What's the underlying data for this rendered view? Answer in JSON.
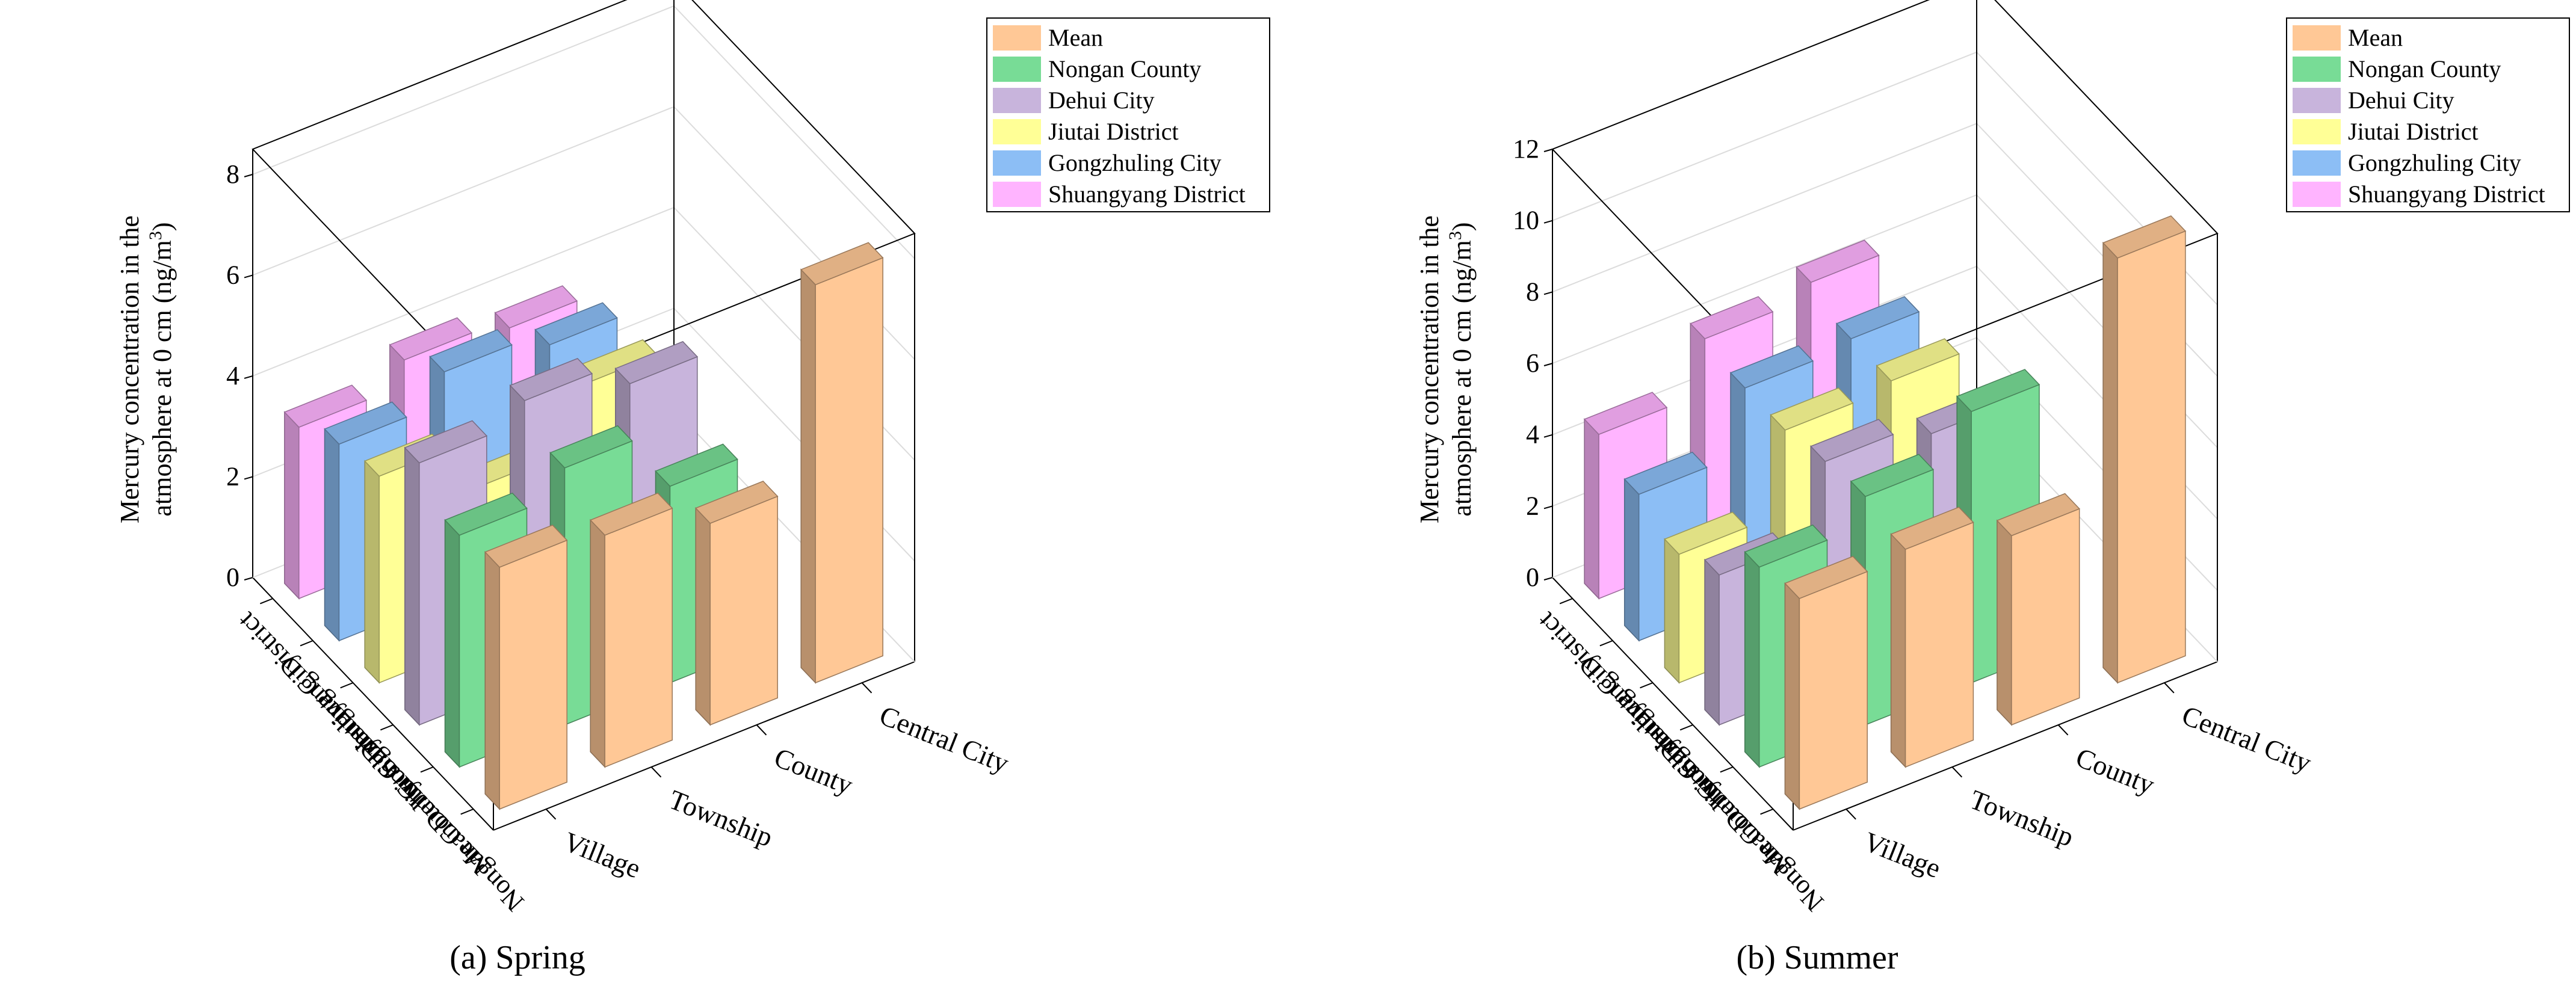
{
  "figure": {
    "colors": {
      "Mean": "#FFC896",
      "Nongan County": "#78DC96",
      "Dehui City": "#C8B4DC",
      "Jiutai District": "#FFFF96",
      "Gongzhuling City": "#8CBEF5",
      "Shuangyang District": "#FFB4FF"
    }
  },
  "chart_data": [
    {
      "type": "bar3d",
      "caption": "(a) Spring",
      "zlabel_line1": "Mercury concentration in the",
      "zlabel_line2": "atmosphere at 0 cm (ng/m",
      "zlabel_sup": "3",
      "zlabel_close": ")",
      "zlim": [
        0,
        8.5
      ],
      "zticks": [
        "0",
        "2",
        "4",
        "6",
        "8"
      ],
      "zticks_values": [
        0,
        2,
        4,
        6,
        8
      ],
      "x_categories": [
        "Village",
        "Township",
        "County",
        "Central City"
      ],
      "y_categories": [
        "Shuangyang District",
        "Gongzhuling City",
        "Jiutai District",
        "Dehui City",
        "Nongan County",
        "Mean"
      ],
      "legend": [
        "Mean",
        "Nongan County",
        "Dehui City",
        "Jiutai District",
        "Gongzhuling City",
        "Shuangyang District"
      ],
      "series": [
        {
          "name": "Shuangyang District",
          "values": [
            3.4,
            3.9,
            3.7,
            null
          ]
        },
        {
          "name": "Gongzhuling City",
          "values": [
            3.9,
            4.5,
            4.2,
            null
          ]
        },
        {
          "name": "Jiutai District",
          "values": [
            4.1,
            3.1,
            4.3,
            null
          ]
        },
        {
          "name": "Dehui City",
          "values": [
            5.2,
            5.6,
            5.1,
            null
          ]
        },
        {
          "name": "Nongan County",
          "values": [
            4.6,
            5.1,
            3.9,
            null
          ]
        },
        {
          "name": "Mean",
          "values": [
            4.8,
            4.6,
            4.0,
            7.9
          ]
        }
      ]
    },
    {
      "type": "bar3d",
      "caption": "(b) Summer",
      "zlabel_line1": "Mercury concentration in the",
      "zlabel_line2": "atmosphere at 0 cm (ng/m",
      "zlabel_sup": "3",
      "zlabel_close": ")",
      "zlim": [
        0,
        12
      ],
      "zticks": [
        "0",
        "2",
        "4",
        "6",
        "8",
        "10",
        "12"
      ],
      "zticks_values": [
        0,
        2,
        4,
        6,
        8,
        10,
        12
      ],
      "x_categories": [
        "Village",
        "Township",
        "County",
        "Central City"
      ],
      "y_categories": [
        "Shuangyang District",
        "Gongzhuling City",
        "Jiutai District",
        "Dehui City",
        "Nongan County",
        "Mean"
      ],
      "legend": [
        "Mean",
        "Nongan County",
        "Dehui City",
        "Jiutai District",
        "Gongzhuling City",
        "Shuangyang District"
      ],
      "series": [
        {
          "name": "Shuangyang District",
          "values": [
            4.6,
            6.1,
            6.5,
            null
          ]
        },
        {
          "name": "Gongzhuling City",
          "values": [
            4.1,
            5.9,
            6.1,
            null
          ]
        },
        {
          "name": "Jiutai District",
          "values": [
            3.6,
            5.9,
            6.1,
            null
          ]
        },
        {
          "name": "Dehui City",
          "values": [
            4.2,
            6.2,
            5.8,
            null
          ]
        },
        {
          "name": "Nongan County",
          "values": [
            5.6,
            6.4,
            7.6,
            null
          ]
        },
        {
          "name": "Mean",
          "values": [
            5.9,
            6.1,
            5.3,
            11.9
          ]
        }
      ]
    }
  ]
}
